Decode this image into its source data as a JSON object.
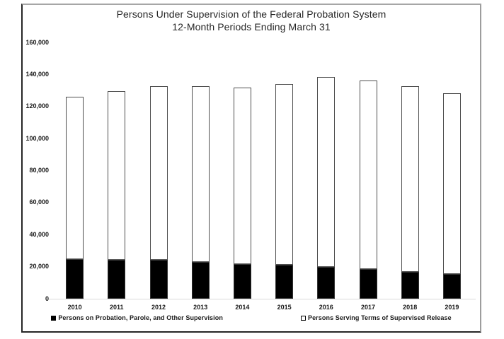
{
  "chart_data": {
    "type": "bar",
    "stacked": true,
    "title": "Persons Under Supervision of the Federal Probation System",
    "subtitle": "12-Month Periods Ending March 31",
    "categories": [
      "2010",
      "2011",
      "2012",
      "2013",
      "2014",
      "2015",
      "2016",
      "2017",
      "2018",
      "2019"
    ],
    "series": [
      {
        "name": "Persons on Probation, Parole, and Other Supervision",
        "color": "#000000",
        "marker": "filled-square",
        "values": [
          24600,
          24200,
          24400,
          23000,
          21700,
          21100,
          20000,
          18300,
          16800,
          15600
        ]
      },
      {
        "name": "Persons Serving Terms of Supervised Release",
        "color": "#ffffff",
        "marker": "open-square",
        "values": [
          101500,
          105400,
          108200,
          109500,
          110100,
          112700,
          118200,
          118100,
          115700,
          112800
        ]
      }
    ],
    "stack_totals": [
      126100,
      129600,
      132600,
      132500,
      131800,
      133800,
      138200,
      136400,
      132500,
      128400
    ],
    "xlabel": "",
    "ylabel": "",
    "ylim": [
      0,
      160000
    ],
    "ytick_step": 20000,
    "ytick_labels": [
      "0",
      "20,000",
      "40,000",
      "60,000",
      "80,000",
      "100,000",
      "120,000",
      "140,000",
      "160,000"
    ],
    "grid": false,
    "legend_position": "bottom",
    "bar_outline_color": "#4d4d4d",
    "axis_line_color": "#d9d9d9"
  }
}
